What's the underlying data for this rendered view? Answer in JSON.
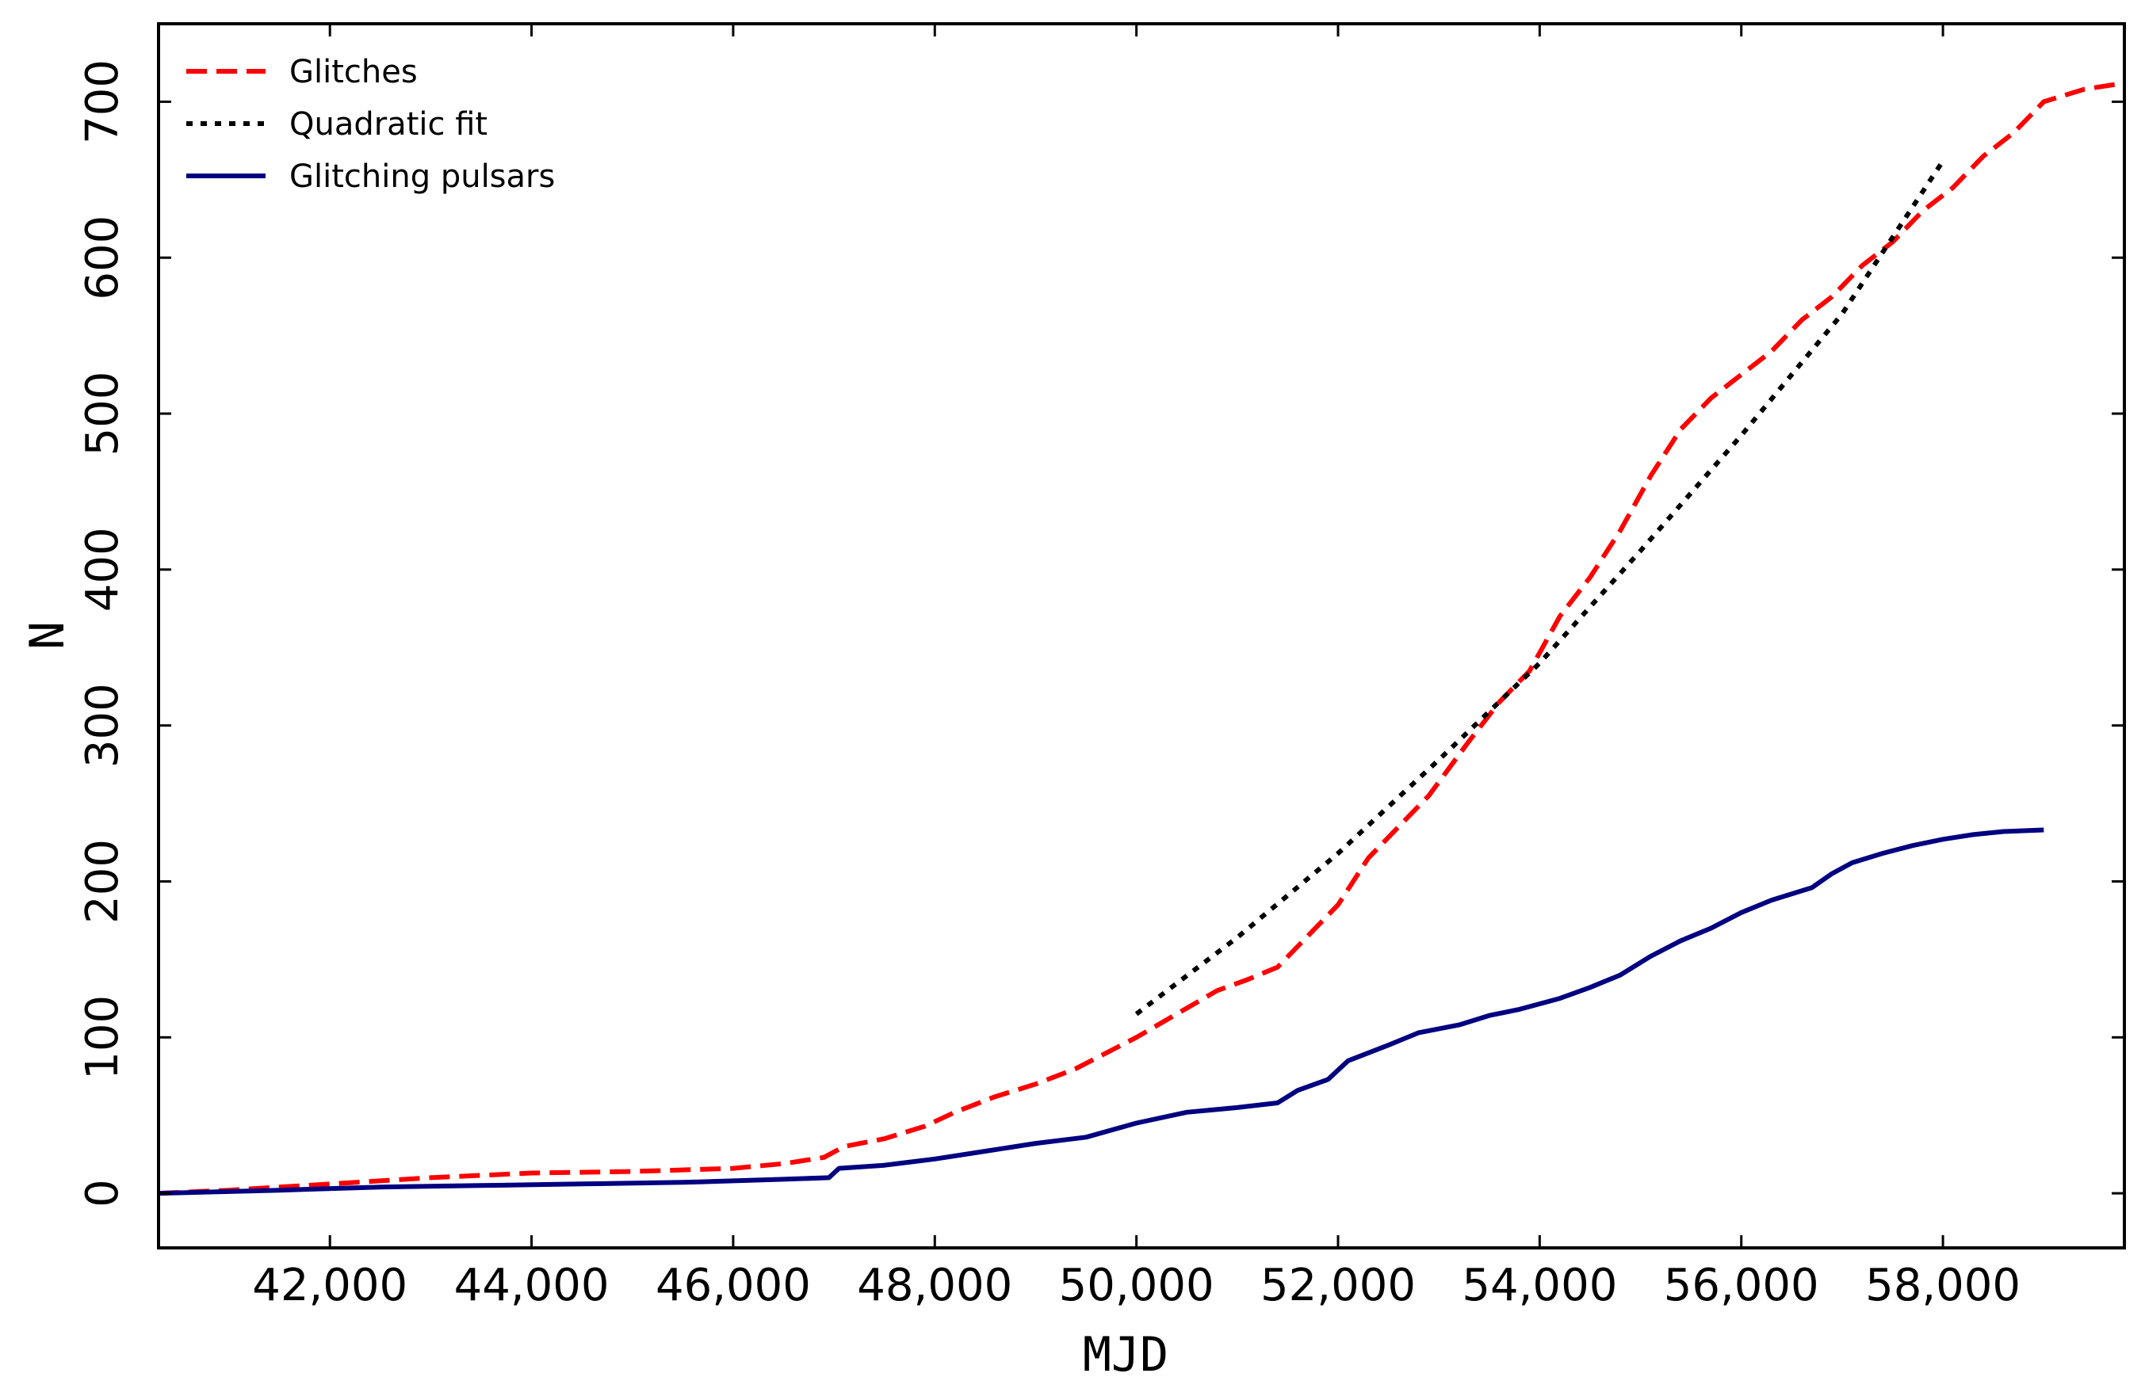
{
  "chart_data": {
    "type": "line",
    "title": "",
    "xlabel": "MJD",
    "ylabel": "N",
    "xlim": [
      40300,
      59800
    ],
    "ylim": [
      -35,
      750
    ],
    "xticks": [
      42000,
      44000,
      46000,
      48000,
      50000,
      52000,
      54000,
      56000,
      58000
    ],
    "xtick_labels": [
      "42,000",
      "44,000",
      "46,000",
      "48,000",
      "50,000",
      "52,000",
      "54,000",
      "56,000",
      "58,000"
    ],
    "yticks": [
      0,
      100,
      200,
      300,
      400,
      500,
      600,
      700
    ],
    "ytick_labels": [
      "0",
      "100",
      "200",
      "300",
      "400",
      "500",
      "600",
      "700"
    ],
    "grid": false,
    "legend_position": "top-left",
    "series": [
      {
        "name": "Glitches",
        "color": "#ff0000",
        "style": "dashed",
        "x": [
          40300,
          41000,
          42000,
          43000,
          44000,
          45000,
          46000,
          46500,
          46900,
          47100,
          47500,
          47900,
          48200,
          48600,
          49000,
          49400,
          49700,
          50000,
          50400,
          50800,
          51100,
          51400,
          51700,
          52000,
          52300,
          52600,
          52900,
          53300,
          53600,
          53900,
          54200,
          54500,
          54800,
          55100,
          55400,
          55700,
          56000,
          56300,
          56600,
          56900,
          57200,
          57500,
          57800,
          58100,
          58400,
          58700,
          59000,
          59400,
          59800
        ],
        "y": [
          0,
          2,
          6,
          10,
          13,
          14,
          16,
          19,
          23,
          30,
          35,
          43,
          52,
          62,
          70,
          80,
          90,
          100,
          115,
          130,
          137,
          145,
          165,
          185,
          215,
          235,
          255,
          290,
          315,
          335,
          370,
          395,
          425,
          460,
          490,
          510,
          525,
          540,
          560,
          575,
          595,
          610,
          630,
          645,
          665,
          680,
          700,
          708,
          712
        ]
      },
      {
        "name": "Quadratic fit",
        "color": "#000000",
        "style": "dotted",
        "x": [
          50000,
          51000,
          52000,
          53000,
          54000,
          55000,
          56000,
          57000,
          58000
        ],
        "y": [
          115,
          164,
          218,
          278,
          340,
          412,
          486,
          564,
          662
        ]
      },
      {
        "name": "Glitching pulsars",
        "color": "#000080",
        "style": "solid",
        "x": [
          40300,
          41500,
          42500,
          43500,
          44500,
          45500,
          46000,
          46500,
          46950,
          47050,
          47500,
          48000,
          48500,
          49000,
          49500,
          50000,
          50500,
          51000,
          51400,
          51600,
          51900,
          52100,
          52500,
          52800,
          53200,
          53500,
          53800,
          54200,
          54500,
          54800,
          55100,
          55400,
          55700,
          56000,
          56300,
          56700,
          56900,
          57100,
          57400,
          57700,
          58000,
          58300,
          58600,
          59000
        ],
        "y": [
          0,
          2,
          4,
          5,
          6,
          7,
          8,
          9,
          10,
          16,
          18,
          22,
          27,
          32,
          36,
          45,
          52,
          55,
          58,
          66,
          73,
          85,
          95,
          103,
          108,
          114,
          118,
          125,
          132,
          140,
          152,
          162,
          170,
          180,
          188,
          196,
          205,
          212,
          218,
          223,
          227,
          230,
          232,
          233
        ]
      }
    ]
  }
}
